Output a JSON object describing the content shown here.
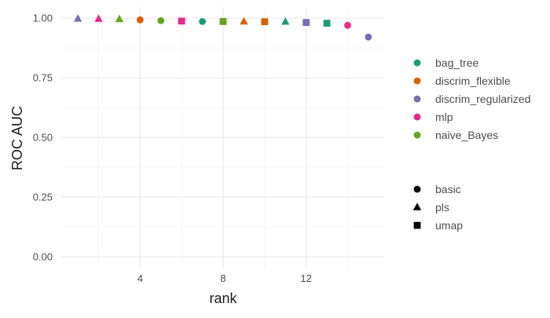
{
  "chart_data": {
    "type": "scatter",
    "title": "",
    "xlabel": "rank",
    "ylabel": "ROC AUC",
    "xlim": [
      0.2,
      15.8
    ],
    "ylim": [
      -0.05,
      1.05
    ],
    "x_ticks": [
      4,
      8,
      12
    ],
    "y_ticks": [
      0.0,
      0.25,
      0.5,
      0.75,
      1.0
    ],
    "y_tick_labels": [
      "0.00",
      "0.25",
      "0.50",
      "0.75",
      "1.00"
    ],
    "grid": true,
    "legend_position": "right",
    "color_legend": [
      {
        "label": "bag_tree",
        "color": "#1B9E77"
      },
      {
        "label": "discrim_flexible",
        "color": "#D95F02"
      },
      {
        "label": "discrim_regularized",
        "color": "#7570B3"
      },
      {
        "label": "mlp",
        "color": "#E7298A"
      },
      {
        "label": "naive_Bayes",
        "color": "#66A61E"
      }
    ],
    "shape_legend": [
      {
        "label": "basic",
        "shape": "circle"
      },
      {
        "label": "pls",
        "shape": "triangle"
      },
      {
        "label": "umap",
        "shape": "square"
      }
    ],
    "points": [
      {
        "x": 1,
        "y": 0.998,
        "model": "discrim_regularized",
        "preproc": "pls"
      },
      {
        "x": 2,
        "y": 0.997,
        "model": "mlp",
        "preproc": "pls"
      },
      {
        "x": 3,
        "y": 0.996,
        "model": "naive_Bayes",
        "preproc": "pls"
      },
      {
        "x": 4,
        "y": 0.993,
        "model": "discrim_flexible",
        "preproc": "basic"
      },
      {
        "x": 5,
        "y": 0.99,
        "model": "naive_Bayes",
        "preproc": "basic"
      },
      {
        "x": 6,
        "y": 0.988,
        "model": "mlp",
        "preproc": "umap"
      },
      {
        "x": 7,
        "y": 0.986,
        "model": "bag_tree",
        "preproc": "basic"
      },
      {
        "x": 8,
        "y": 0.986,
        "model": "naive_Bayes",
        "preproc": "umap"
      },
      {
        "x": 9,
        "y": 0.986,
        "model": "discrim_flexible",
        "preproc": "pls"
      },
      {
        "x": 10,
        "y": 0.985,
        "model": "discrim_flexible",
        "preproc": "umap"
      },
      {
        "x": 11,
        "y": 0.985,
        "model": "bag_tree",
        "preproc": "pls"
      },
      {
        "x": 12,
        "y": 0.982,
        "model": "discrim_regularized",
        "preproc": "umap"
      },
      {
        "x": 13,
        "y": 0.979,
        "model": "bag_tree",
        "preproc": "umap"
      },
      {
        "x": 14,
        "y": 0.97,
        "model": "mlp",
        "preproc": "basic"
      },
      {
        "x": 15,
        "y": 0.921,
        "model": "discrim_regularized",
        "preproc": "basic"
      }
    ]
  }
}
